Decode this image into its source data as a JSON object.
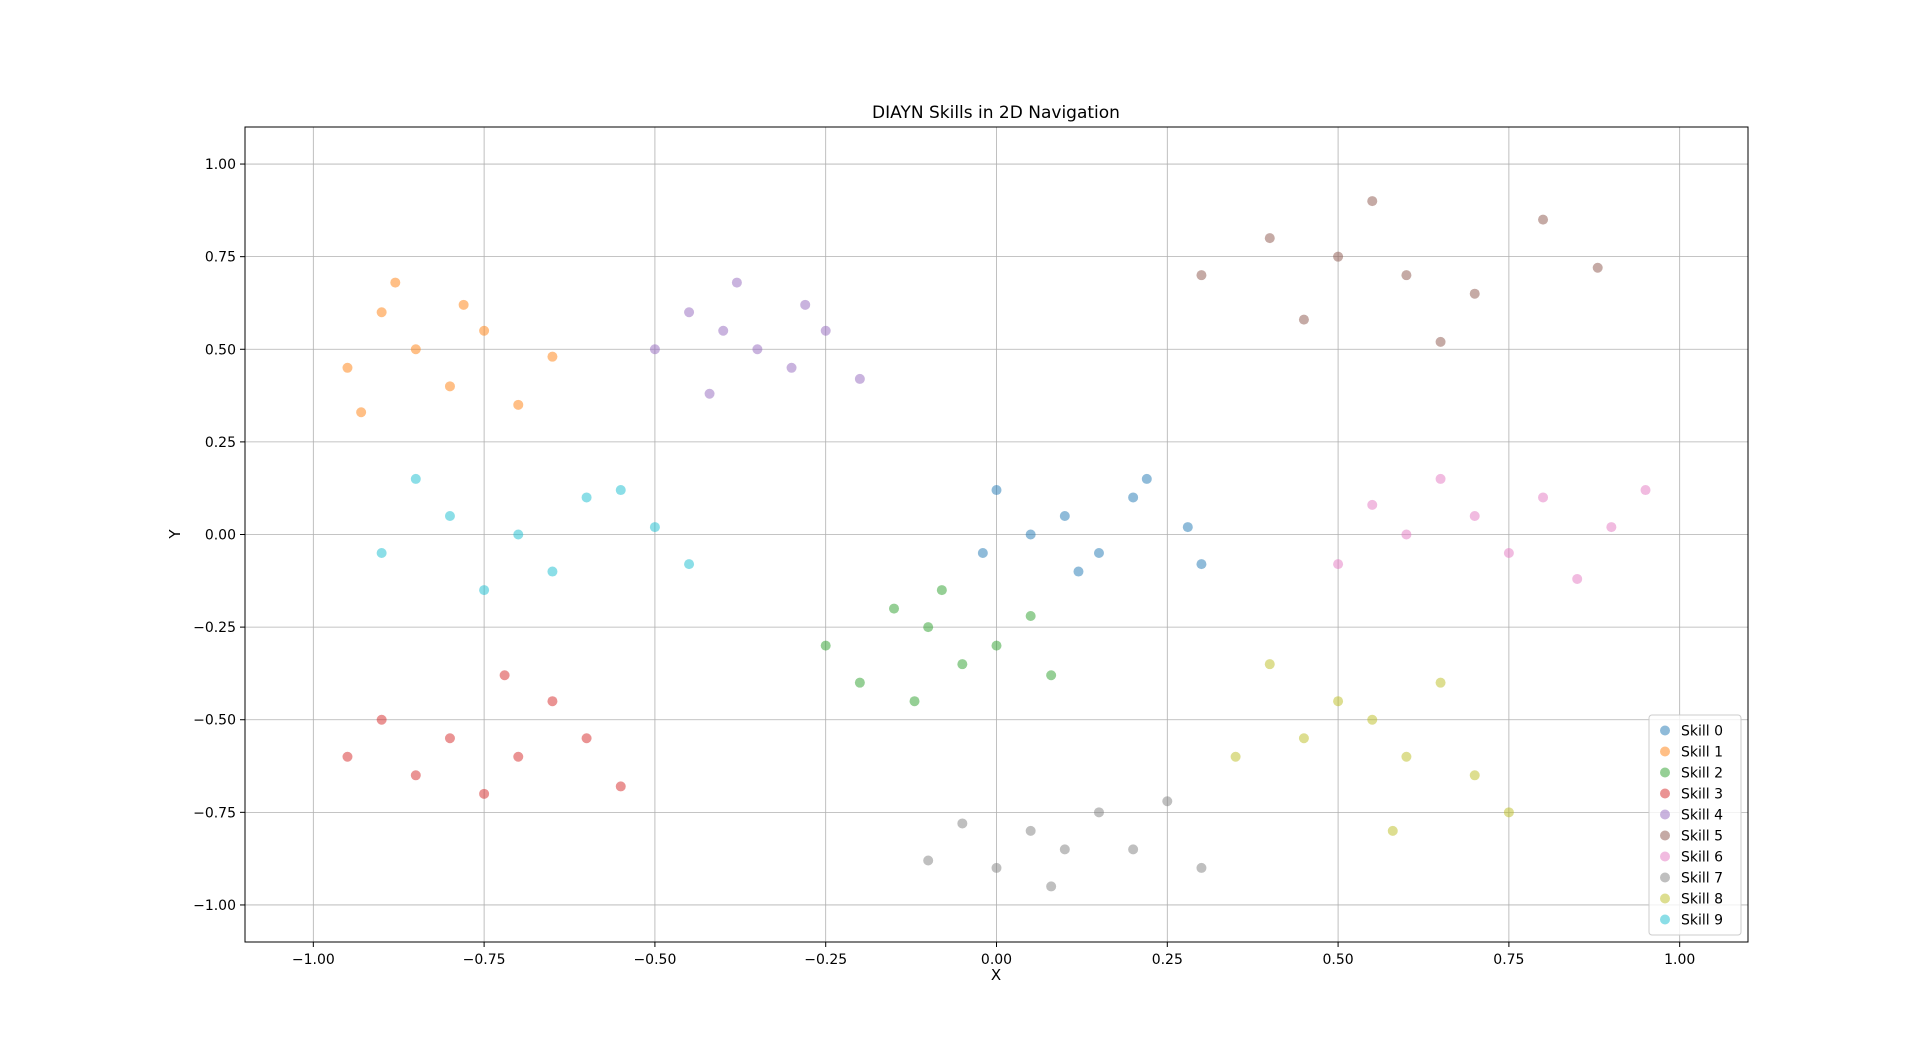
{
  "chart_data": {
    "type": "scatter",
    "title": "DIAYN Skills in 2D Navigation",
    "xlabel": "X",
    "ylabel": "Y",
    "xlim": [
      -1.1,
      1.1
    ],
    "ylim": [
      -1.1,
      1.1
    ],
    "xticks": [
      -1.0,
      -0.75,
      -0.5,
      -0.25,
      0.0,
      0.25,
      0.5,
      0.75,
      1.0
    ],
    "yticks": [
      -1.0,
      -0.75,
      -0.5,
      -0.25,
      0.0,
      0.25,
      0.5,
      0.75,
      1.0
    ],
    "xtick_labels": [
      "−1.00",
      "−0.75",
      "−0.50",
      "−0.25",
      "0.00",
      "0.25",
      "0.50",
      "0.75",
      "1.00"
    ],
    "ytick_labels": [
      "−1.00",
      "−0.75",
      "−0.50",
      "−0.25",
      "0.00",
      "0.25",
      "0.50",
      "0.75",
      "1.00"
    ],
    "grid": true,
    "legend_position": "lower right",
    "marker_alpha": 0.5,
    "series": [
      {
        "name": "Skill 0",
        "color": "#1f77b4",
        "points": [
          [
            0.1,
            0.05
          ],
          [
            0.15,
            -0.05
          ],
          [
            0.2,
            0.1
          ],
          [
            0.05,
            0.0
          ],
          [
            0.28,
            0.02
          ],
          [
            0.0,
            0.12
          ],
          [
            0.12,
            -0.1
          ],
          [
            0.3,
            -0.08
          ],
          [
            -0.02,
            -0.05
          ],
          [
            0.22,
            0.15
          ]
        ]
      },
      {
        "name": "Skill 1",
        "color": "#ff7f0e",
        "points": [
          [
            -0.85,
            0.5
          ],
          [
            -0.9,
            0.6
          ],
          [
            -0.8,
            0.4
          ],
          [
            -0.75,
            0.55
          ],
          [
            -0.95,
            0.45
          ],
          [
            -0.7,
            0.35
          ],
          [
            -0.88,
            0.68
          ],
          [
            -0.65,
            0.48
          ],
          [
            -0.78,
            0.62
          ],
          [
            -0.93,
            0.33
          ]
        ]
      },
      {
        "name": "Skill 2",
        "color": "#2ca02c",
        "points": [
          [
            -0.1,
            -0.25
          ],
          [
            -0.05,
            -0.35
          ],
          [
            -0.15,
            -0.2
          ],
          [
            0.0,
            -0.3
          ],
          [
            -0.2,
            -0.4
          ],
          [
            -0.08,
            -0.15
          ],
          [
            0.05,
            -0.22
          ],
          [
            -0.25,
            -0.3
          ],
          [
            -0.12,
            -0.45
          ],
          [
            0.08,
            -0.38
          ]
        ]
      },
      {
        "name": "Skill 3",
        "color": "#d62728",
        "points": [
          [
            -0.8,
            -0.55
          ],
          [
            -0.7,
            -0.6
          ],
          [
            -0.9,
            -0.5
          ],
          [
            -0.75,
            -0.7
          ],
          [
            -0.6,
            -0.55
          ],
          [
            -0.85,
            -0.65
          ],
          [
            -0.65,
            -0.45
          ],
          [
            -0.95,
            -0.6
          ],
          [
            -0.72,
            -0.38
          ],
          [
            -0.55,
            -0.68
          ]
        ]
      },
      {
        "name": "Skill 4",
        "color": "#9467bd",
        "points": [
          [
            -0.4,
            0.55
          ],
          [
            -0.35,
            0.5
          ],
          [
            -0.3,
            0.45
          ],
          [
            -0.45,
            0.6
          ],
          [
            -0.25,
            0.55
          ],
          [
            -0.2,
            0.42
          ],
          [
            -0.5,
            0.5
          ],
          [
            -0.38,
            0.68
          ],
          [
            -0.28,
            0.62
          ],
          [
            -0.42,
            0.38
          ]
        ]
      },
      {
        "name": "Skill 5",
        "color": "#8c564b",
        "points": [
          [
            0.5,
            0.75
          ],
          [
            0.6,
            0.7
          ],
          [
            0.4,
            0.8
          ],
          [
            0.7,
            0.65
          ],
          [
            0.3,
            0.7
          ],
          [
            0.55,
            0.9
          ],
          [
            0.8,
            0.85
          ],
          [
            0.45,
            0.58
          ],
          [
            0.65,
            0.52
          ],
          [
            0.88,
            0.72
          ]
        ]
      },
      {
        "name": "Skill 6",
        "color": "#e377c2",
        "points": [
          [
            0.7,
            0.05
          ],
          [
            0.6,
            0.0
          ],
          [
            0.8,
            0.1
          ],
          [
            0.75,
            -0.05
          ],
          [
            0.55,
            0.08
          ],
          [
            0.9,
            0.02
          ],
          [
            0.65,
            0.15
          ],
          [
            0.85,
            -0.12
          ],
          [
            0.5,
            -0.08
          ],
          [
            0.95,
            0.12
          ]
        ]
      },
      {
        "name": "Skill 7",
        "color": "#7f7f7f",
        "points": [
          [
            0.05,
            -0.8
          ],
          [
            0.1,
            -0.85
          ],
          [
            0.15,
            -0.75
          ],
          [
            0.0,
            -0.9
          ],
          [
            0.2,
            -0.85
          ],
          [
            -0.05,
            -0.78
          ],
          [
            0.25,
            -0.72
          ],
          [
            0.08,
            -0.95
          ],
          [
            0.3,
            -0.9
          ],
          [
            -0.1,
            -0.88
          ]
        ]
      },
      {
        "name": "Skill 8",
        "color": "#bcbd22",
        "points": [
          [
            0.55,
            -0.5
          ],
          [
            0.6,
            -0.6
          ],
          [
            0.5,
            -0.45
          ],
          [
            0.7,
            -0.65
          ],
          [
            0.45,
            -0.55
          ],
          [
            0.65,
            -0.4
          ],
          [
            0.4,
            -0.35
          ],
          [
            0.75,
            -0.75
          ],
          [
            0.58,
            -0.8
          ],
          [
            0.35,
            -0.6
          ]
        ]
      },
      {
        "name": "Skill 9",
        "color": "#17becf",
        "points": [
          [
            -0.8,
            0.05
          ],
          [
            -0.7,
            0.0
          ],
          [
            -0.6,
            0.1
          ],
          [
            -0.9,
            -0.05
          ],
          [
            -0.5,
            0.02
          ],
          [
            -0.65,
            -0.1
          ],
          [
            -0.85,
            0.15
          ],
          [
            -0.45,
            -0.08
          ],
          [
            -0.75,
            -0.15
          ],
          [
            -0.55,
            0.12
          ]
        ]
      }
    ]
  }
}
